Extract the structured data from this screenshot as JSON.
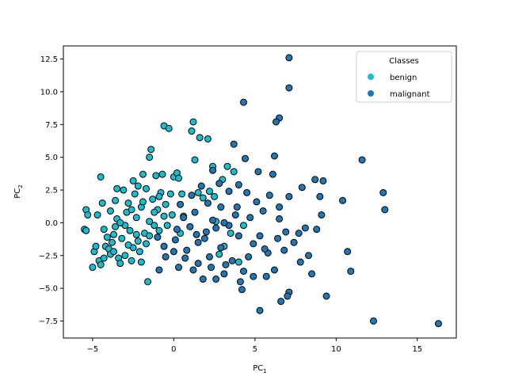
{
  "chart_data": {
    "type": "scatter",
    "title": "",
    "xlabel": "PC",
    "xlabel_sub": "1",
    "ylabel": "PC",
    "ylabel_sub": "2",
    "xlim": [
      -6.8,
      17.4
    ],
    "ylim": [
      -8.8,
      13.5
    ],
    "xticks": [
      -5,
      0,
      5,
      10,
      15
    ],
    "yticks": [
      -7.5,
      -5.0,
      -2.5,
      0.0,
      2.5,
      5.0,
      7.5,
      10.0,
      12.5
    ],
    "xtick_labels": [
      "−5",
      "0",
      "5",
      "10",
      "15"
    ],
    "ytick_labels": [
      "−7.5",
      "−5.0",
      "−2.5",
      "0.0",
      "2.5",
      "5.0",
      "7.5",
      "10.0",
      "12.5"
    ],
    "grid": false,
    "legend": {
      "title": "Classes",
      "placement": "top-right"
    },
    "series": [
      {
        "name": "benign",
        "color": "#17becf",
        "points": [
          [
            -5.4,
            1.0
          ],
          [
            -5.3,
            0.6
          ],
          [
            -5.5,
            -0.5
          ],
          [
            -5.4,
            -0.6
          ],
          [
            -5.0,
            -3.4
          ],
          [
            -4.9,
            -2.2
          ],
          [
            -4.8,
            -1.8
          ],
          [
            -4.6,
            -2.9
          ],
          [
            -4.5,
            -3.2
          ],
          [
            -4.7,
            0.6
          ],
          [
            -4.5,
            3.5
          ],
          [
            -4.4,
            1.5
          ],
          [
            -4.3,
            -0.5
          ],
          [
            -4.2,
            -1.8
          ],
          [
            -4.0,
            -2.0
          ],
          [
            -3.9,
            -2.4
          ],
          [
            -3.8,
            -1.5
          ],
          [
            -3.7,
            -0.9
          ],
          [
            -3.6,
            -0.3
          ],
          [
            -3.5,
            0.3
          ],
          [
            -3.5,
            2.6
          ],
          [
            -3.4,
            -2.7
          ],
          [
            -3.3,
            -3.1
          ],
          [
            -3.2,
            -1.2
          ],
          [
            -3.0,
            -2.5
          ],
          [
            -2.9,
            0.8
          ],
          [
            -2.8,
            1.5
          ],
          [
            -2.7,
            -0.6
          ],
          [
            -2.6,
            -2.9
          ],
          [
            -2.5,
            -1.9
          ],
          [
            -2.4,
            2.2
          ],
          [
            -2.3,
            0.4
          ],
          [
            -2.2,
            -1.4
          ],
          [
            -2.1,
            -2.2
          ],
          [
            -2.0,
            1.2
          ],
          [
            -1.9,
            3.7
          ],
          [
            -1.8,
            -0.8
          ],
          [
            -1.7,
            -1.6
          ],
          [
            -1.6,
            -4.5
          ],
          [
            -1.5,
            0.1
          ],
          [
            -1.5,
            5.0
          ],
          [
            -1.4,
            5.6
          ],
          [
            -1.3,
            1.8
          ],
          [
            -1.2,
            -0.2
          ],
          [
            -1.1,
            3.6
          ],
          [
            -1.0,
            1.0
          ],
          [
            -0.9,
            -0.6
          ],
          [
            -0.8,
            2.3
          ],
          [
            -0.7,
            3.7
          ],
          [
            -0.6,
            7.4
          ],
          [
            -0.5,
            1.4
          ],
          [
            -0.4,
            -0.2
          ],
          [
            -0.3,
            7.2
          ],
          [
            -0.2,
            2.2
          ],
          [
            -0.1,
            0.6
          ],
          [
            0.0,
            3.5
          ],
          [
            0.2,
            3.8
          ],
          [
            0.3,
            3.4
          ],
          [
            0.4,
            -0.8
          ],
          [
            0.5,
            2.2
          ],
          [
            0.6,
            0.5
          ],
          [
            1.1,
            7.0
          ],
          [
            1.2,
            7.7
          ],
          [
            1.3,
            4.8
          ],
          [
            1.5,
            2.3
          ],
          [
            1.6,
            6.5
          ],
          [
            1.8,
            1.9
          ],
          [
            2.1,
            6.4
          ],
          [
            2.2,
            2.4
          ],
          [
            2.4,
            4.3
          ],
          [
            2.5,
            2.0
          ],
          [
            2.6,
            0.1
          ],
          [
            2.8,
            -2.4
          ],
          [
            3.0,
            3.3
          ],
          [
            3.1,
            -1.8
          ],
          [
            3.3,
            4.3
          ],
          [
            3.5,
            -0.8
          ],
          [
            3.7,
            3.9
          ],
          [
            4.0,
            -3.0
          ],
          [
            4.3,
            -0.2
          ],
          [
            -3.9,
            0.9
          ],
          [
            -3.6,
            1.7
          ],
          [
            -3.1,
            2.5
          ],
          [
            -2.3,
            -0.9
          ],
          [
            -1.7,
            2.6
          ],
          [
            -0.9,
            2.0
          ],
          [
            -2.5,
            3.2
          ],
          [
            -3.0,
            -0.2
          ],
          [
            -4.1,
            -1.1
          ],
          [
            -2.0,
            -3.0
          ],
          [
            -2.6,
            1.0
          ],
          [
            -1.2,
            0.8
          ],
          [
            -3.3,
            0.0
          ],
          [
            -1.5,
            -1.0
          ],
          [
            -2.8,
            -1.7
          ],
          [
            -0.6,
            0.5
          ],
          [
            -2.2,
            2.8
          ],
          [
            -3.7,
            -2.2
          ],
          [
            -4.3,
            -2.7
          ],
          [
            -1.9,
            1.6
          ]
        ]
      },
      {
        "name": "malignant",
        "color": "#1f77b4",
        "points": [
          [
            7.1,
            12.6
          ],
          [
            7.1,
            10.3
          ],
          [
            4.3,
            9.2
          ],
          [
            6.5,
            8.0
          ],
          [
            6.3,
            7.7
          ],
          [
            3.7,
            6.0
          ],
          [
            6.2,
            5.1
          ],
          [
            11.6,
            4.8
          ],
          [
            4.4,
            4.9
          ],
          [
            5.2,
            3.9
          ],
          [
            6.1,
            3.7
          ],
          [
            8.7,
            3.3
          ],
          [
            9.2,
            3.2
          ],
          [
            12.9,
            2.3
          ],
          [
            13.0,
            1.0
          ],
          [
            10.4,
            1.7
          ],
          [
            9.0,
            2.0
          ],
          [
            7.9,
            2.7
          ],
          [
            7.1,
            2.0
          ],
          [
            6.5,
            1.2
          ],
          [
            5.5,
            0.9
          ],
          [
            4.7,
            0.4
          ],
          [
            9.1,
            0.6
          ],
          [
            10.9,
            -3.7
          ],
          [
            10.7,
            -2.2
          ],
          [
            12.3,
            -7.5
          ],
          [
            16.3,
            -7.7
          ],
          [
            9.4,
            -5.6
          ],
          [
            8.5,
            -3.9
          ],
          [
            7.1,
            -5.3
          ],
          [
            7.0,
            -5.6
          ],
          [
            6.6,
            -6.0
          ],
          [
            5.3,
            -6.7
          ],
          [
            4.2,
            -5.1
          ],
          [
            4.1,
            -4.5
          ],
          [
            3.1,
            -3.9
          ],
          [
            2.6,
            -4.3
          ],
          [
            1.8,
            -4.3
          ],
          [
            1.2,
            -3.6
          ],
          [
            0.3,
            -3.4
          ],
          [
            -0.9,
            -3.6
          ],
          [
            -0.5,
            -2.6
          ],
          [
            0.1,
            -1.3
          ],
          [
            0.8,
            -2.1
          ],
          [
            1.4,
            -0.9
          ],
          [
            2.0,
            -0.7
          ],
          [
            2.4,
            0.2
          ],
          [
            3.4,
            -0.2
          ],
          [
            4.0,
            -1.0
          ],
          [
            4.9,
            -1.6
          ],
          [
            5.8,
            -2.3
          ],
          [
            6.4,
            -1.2
          ],
          [
            7.4,
            -1.5
          ],
          [
            8.1,
            -0.4
          ],
          [
            8.8,
            -0.5
          ],
          [
            7.7,
            -0.8
          ],
          [
            6.9,
            -0.7
          ],
          [
            6.2,
            -3.6
          ],
          [
            5.7,
            -4.1
          ],
          [
            4.9,
            -4.1
          ],
          [
            3.6,
            -2.9
          ],
          [
            2.9,
            -1.9
          ],
          [
            2.2,
            -2.6
          ],
          [
            1.5,
            -1.5
          ],
          [
            0.6,
            0.4
          ],
          [
            -0.6,
            -1.8
          ],
          [
            -1.0,
            -1.1
          ],
          [
            0.4,
            1.4
          ],
          [
            1.1,
            2.1
          ],
          [
            1.7,
            2.8
          ],
          [
            2.4,
            4.0
          ],
          [
            2.8,
            3.0
          ],
          [
            3.4,
            2.4
          ],
          [
            3.9,
            1.2
          ],
          [
            4.5,
            2.3
          ],
          [
            5.1,
            1.6
          ],
          [
            5.9,
            2.1
          ],
          [
            6.5,
            0.3
          ],
          [
            7.8,
            -3.0
          ],
          [
            8.3,
            -2.5
          ],
          [
            1.9,
            -1.2
          ],
          [
            2.6,
            -0.4
          ],
          [
            3.2,
            -3.2
          ],
          [
            4.6,
            -2.6
          ],
          [
            5.3,
            -1.0
          ],
          [
            1.0,
            -0.3
          ],
          [
            0.0,
            -2.2
          ],
          [
            2.1,
            1.5
          ],
          [
            3.8,
            0.6
          ],
          [
            4.3,
            -3.7
          ],
          [
            5.6,
            -2.0
          ],
          [
            1.5,
            -3.1
          ],
          [
            0.7,
            -2.7
          ],
          [
            2.9,
            1.2
          ],
          [
            4.0,
            2.9
          ],
          [
            6.8,
            -2.1
          ],
          [
            3.1,
            0.0
          ],
          [
            0.2,
            -0.5
          ],
          [
            1.3,
            0.8
          ],
          [
            2.3,
            -3.4
          ]
        ]
      }
    ]
  }
}
